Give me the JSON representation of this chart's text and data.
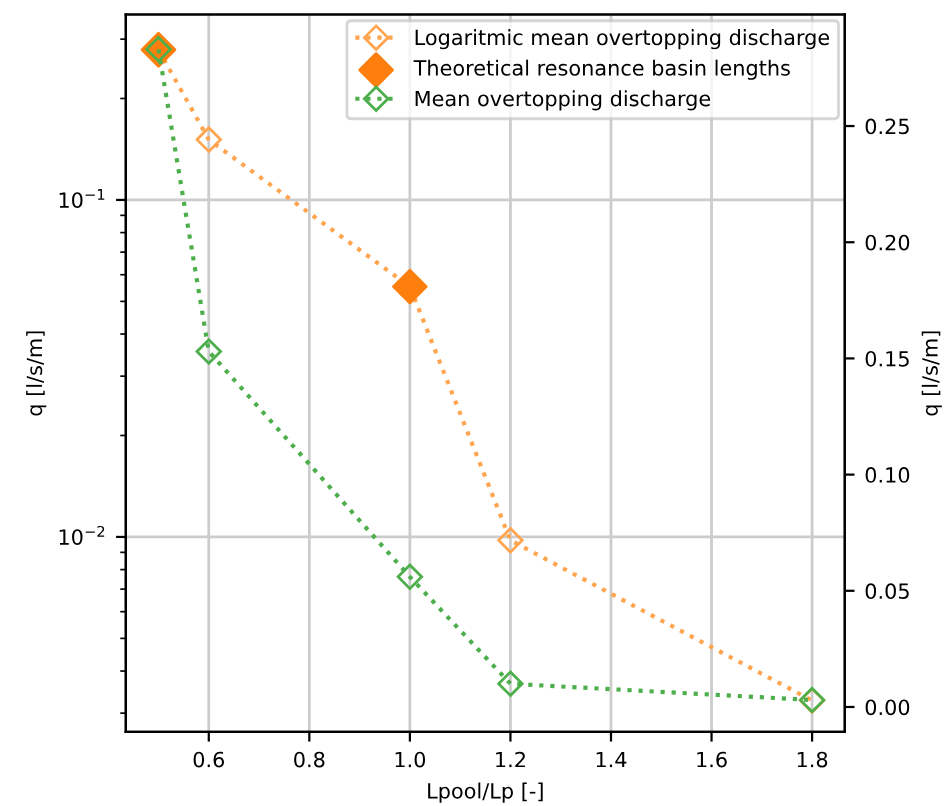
{
  "chart_data": {
    "type": "line",
    "xlabel": "Lpool/Lp [-]",
    "ylabel": "q [l/s/m]",
    "y2label": "q [l/s/m]",
    "log": "y",
    "grid": true,
    "legend": "top right",
    "marker": "diamond",
    "line_style": "dotted",
    "xlim": [
      0.435,
      1.865
    ],
    "xticks": [
      0.6,
      0.8,
      {
        "value": 1.0,
        "label": "1.0"
      },
      1.2,
      1.4,
      1.6,
      1.8
    ],
    "ylim": [
      0.00264,
      0.355
    ],
    "yticks": [
      {
        "value": 0.01,
        "label": "10$^{−2}$"
      },
      {
        "value": 0.1,
        "label": "10$^{−1}$"
      },
      {
        "value": 0.003,
        "label": null
      },
      {
        "value": 0.004,
        "label": null
      },
      {
        "value": 0.005,
        "label": null
      },
      {
        "value": 0.006,
        "label": null
      },
      {
        "value": 0.007,
        "label": null
      },
      {
        "value": 0.008,
        "label": null
      },
      {
        "value": 0.009,
        "label": null
      },
      {
        "value": 0.02,
        "label": null
      },
      {
        "value": 0.03,
        "label": null
      },
      {
        "value": 0.04,
        "label": null
      },
      {
        "value": 0.05,
        "label": null
      },
      {
        "value": 0.06,
        "label": null
      },
      {
        "value": 0.07,
        "label": null
      },
      {
        "value": 0.08,
        "label": null
      },
      {
        "value": 0.09,
        "label": null
      },
      {
        "value": 0.2,
        "label": null
      },
      {
        "value": 0.3,
        "label": null
      }
    ],
    "y2lim": [
      -0.0107,
      0.298
    ],
    "y2ticks": [
      {
        "value": 0.0,
        "label": "0.00"
      },
      {
        "value": 0.05,
        "label": "0.05"
      },
      {
        "value": 0.1,
        "label": "0.10"
      },
      {
        "value": 0.15,
        "label": "0.15"
      },
      {
        "value": 0.2,
        "label": "0.20"
      },
      {
        "value": 0.25,
        "label": "0.25"
      }
    ],
    "series": [
      {
        "name": "Logaritmic mean overtopping discharge",
        "color": "#ffa54f",
        "x": [
          0.5,
          0.6,
          1.0,
          1.2,
          1.8
        ],
        "values": [
          0.279,
          0.151,
          0.0553,
          0.00977,
          0.00327
        ]
      },
      {
        "name": "Theoretical resonance basin lengths",
        "type": "scatter",
        "color": "#ff7f0e",
        "x": [
          0.5,
          1.0
        ],
        "values": [
          0.279,
          0.0553
        ]
      },
      {
        "name": "Mean overtopping discharge",
        "axis": "y2",
        "color": "#4caf4c",
        "x": [
          0.5,
          0.6,
          1.0,
          1.2,
          1.8
        ],
        "values": [
          0.283,
          0.153,
          0.056,
          0.01,
          0.003
        ]
      }
    ]
  }
}
